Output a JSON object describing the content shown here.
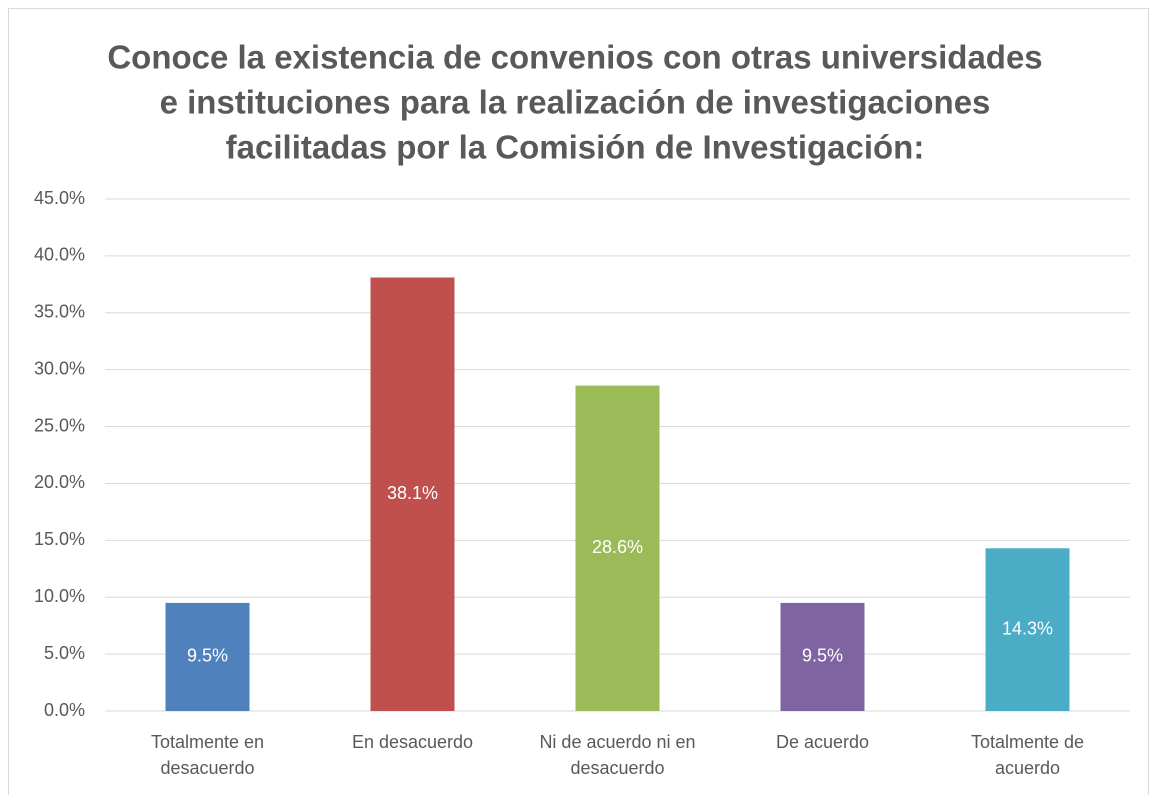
{
  "chart_data": {
    "type": "bar",
    "title": [
      "Conoce la existencia de convenios con otras universidades",
      "e instituciones para la realización de investigaciones",
      "facilitadas por la Comisión de Investigación:"
    ],
    "categories": [
      "Totalmente en desacuerdo",
      "En desacuerdo",
      "Ni de acuerdo ni en desacuerdo",
      "De acuerdo",
      "Totalmente de acuerdo"
    ],
    "values": [
      9.5,
      38.1,
      28.6,
      9.5,
      14.3
    ],
    "value_labels": [
      "9.5%",
      "38.1%",
      "28.6%",
      "9.5%",
      "14.3%"
    ],
    "colors": [
      "#4f81bd",
      "#c0504d",
      "#9bbb59",
      "#8064a2",
      "#4bacc6"
    ],
    "ylim": [
      0,
      45
    ],
    "yticks": [
      {
        "value": 0,
        "label": "0.0%"
      },
      {
        "value": 5,
        "label": "5.0%"
      },
      {
        "value": 10,
        "label": "10.0%"
      },
      {
        "value": 15,
        "label": "15.0%"
      },
      {
        "value": 20,
        "label": "20.0%"
      },
      {
        "value": 25,
        "label": "25.0%"
      },
      {
        "value": 30,
        "label": "30.0%"
      },
      {
        "value": 35,
        "label": "35.0%"
      },
      {
        "value": 40,
        "label": "40.0%"
      },
      {
        "value": 45,
        "label": "45.0%"
      }
    ],
    "grid": true
  }
}
